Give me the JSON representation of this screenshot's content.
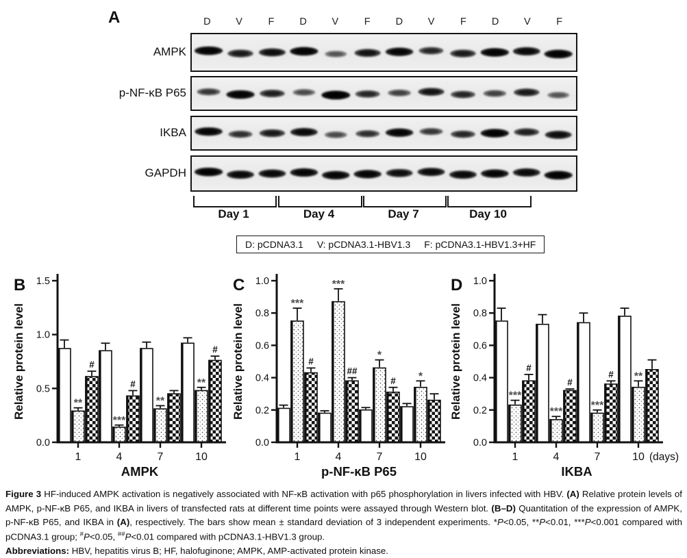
{
  "colors": {
    "ink": "#111111",
    "asterisk": "#4d4d4d",
    "blot_background": "#ededed"
  },
  "panel_a": {
    "label": "A",
    "lane_labels": [
      "D",
      "V",
      "F",
      "D",
      "V",
      "F",
      "D",
      "V",
      "F",
      "D",
      "V",
      "F"
    ],
    "blots": [
      {
        "name": "AMPK",
        "bands": [
          0.95,
          0.7,
          0.8,
          0.95,
          0.35,
          0.75,
          0.9,
          0.6,
          0.7,
          0.95,
          0.85,
          0.95
        ]
      },
      {
        "name": "p-NF-κB P65",
        "bands": [
          0.5,
          0.95,
          0.65,
          0.4,
          1.0,
          0.6,
          0.45,
          0.75,
          0.6,
          0.45,
          0.7,
          0.35
        ]
      },
      {
        "name": "IKBA",
        "bands": [
          0.9,
          0.55,
          0.7,
          0.85,
          0.4,
          0.55,
          0.9,
          0.5,
          0.6,
          0.95,
          0.65,
          0.8
        ]
      },
      {
        "name": "GAPDH",
        "bands": [
          0.95,
          0.85,
          0.85,
          0.9,
          0.9,
          0.9,
          0.8,
          0.85,
          0.85,
          0.9,
          0.85,
          0.95
        ]
      }
    ],
    "day_groups": [
      "Day 1",
      "Day 4",
      "Day 7",
      "Day 10"
    ],
    "legend_items": [
      "D: pCDNA3.1",
      "V: pCDNA3.1-HBV1.3",
      "F: pCDNA3.1-HBV1.3+HF"
    ]
  },
  "chart_data": [
    {
      "panel": "B",
      "type": "bar",
      "xlabel": "AMPK",
      "ylabel": "Relative protein level",
      "ylim": [
        0,
        1.5
      ],
      "yticks": [
        "0.0",
        "0.5",
        "1.0",
        "1.5"
      ],
      "categories": [
        "1",
        "4",
        "7",
        "10"
      ],
      "grid": false,
      "legend_position": "none",
      "series": [
        {
          "name": "pCDNA3.1",
          "pattern": "white",
          "values": [
            0.87,
            0.85,
            0.87,
            0.92
          ],
          "errors": [
            0.08,
            0.07,
            0.06,
            0.05
          ],
          "sig": [
            "",
            "",
            "",
            ""
          ]
        },
        {
          "name": "pCDNA3.1-HBV1.3",
          "pattern": "dots",
          "values": [
            0.29,
            0.14,
            0.31,
            0.48
          ],
          "errors": [
            0.03,
            0.02,
            0.03,
            0.03
          ],
          "sig": [
            "**",
            "***",
            "**",
            "**"
          ]
        },
        {
          "name": "pCDNA3.1-HBV1.3+HF",
          "pattern": "checker",
          "values": [
            0.61,
            0.43,
            0.45,
            0.76
          ],
          "errors": [
            0.05,
            0.05,
            0.03,
            0.04
          ],
          "sig": [
            "#",
            "#",
            "",
            "#"
          ]
        }
      ]
    },
    {
      "panel": "C",
      "type": "bar",
      "xlabel": "p-NF-κB P65",
      "ylabel": "Relative protein level",
      "ylim": [
        0,
        1.0
      ],
      "yticks": [
        "0.0",
        "0.2",
        "0.4",
        "0.6",
        "0.8",
        "1.0"
      ],
      "categories": [
        "1",
        "4",
        "7",
        "10"
      ],
      "grid": false,
      "legend_position": "none",
      "series": [
        {
          "name": "pCDNA3.1",
          "pattern": "white",
          "values": [
            0.21,
            0.18,
            0.2,
            0.22
          ],
          "errors": [
            0.02,
            0.015,
            0.015,
            0.02
          ],
          "sig": [
            "",
            "",
            "",
            ""
          ]
        },
        {
          "name": "pCDNA3.1-HBV1.3",
          "pattern": "dots",
          "values": [
            0.75,
            0.87,
            0.46,
            0.34
          ],
          "errors": [
            0.08,
            0.08,
            0.05,
            0.04
          ],
          "sig": [
            "***",
            "***",
            "*",
            "*"
          ]
        },
        {
          "name": "pCDNA3.1-HBV1.3+HF",
          "pattern": "checker",
          "values": [
            0.43,
            0.38,
            0.31,
            0.26
          ],
          "errors": [
            0.03,
            0.02,
            0.03,
            0.04
          ],
          "sig": [
            "#",
            "##",
            "#",
            ""
          ]
        }
      ]
    },
    {
      "panel": "D",
      "type": "bar",
      "xlabel": "IKBA",
      "ylabel": "Relative protein level",
      "x_suffix": "(days)",
      "ylim": [
        0,
        1.0
      ],
      "yticks": [
        "0.0",
        "0.2",
        "0.4",
        "0.6",
        "0.8",
        "1.0"
      ],
      "categories": [
        "1",
        "4",
        "7",
        "10"
      ],
      "grid": false,
      "legend_position": "none",
      "series": [
        {
          "name": "pCDNA3.1",
          "pattern": "white",
          "values": [
            0.75,
            0.73,
            0.74,
            0.78
          ],
          "errors": [
            0.08,
            0.06,
            0.06,
            0.05
          ],
          "sig": [
            "",
            "",
            "",
            ""
          ]
        },
        {
          "name": "pCDNA3.1-HBV1.3",
          "pattern": "dots",
          "values": [
            0.23,
            0.14,
            0.18,
            0.34
          ],
          "errors": [
            0.03,
            0.02,
            0.02,
            0.04
          ],
          "sig": [
            "***",
            "***",
            "***",
            "**"
          ]
        },
        {
          "name": "pCDNA3.1-HBV1.3+HF",
          "pattern": "checker",
          "values": [
            0.38,
            0.32,
            0.36,
            0.45
          ],
          "errors": [
            0.04,
            0.01,
            0.02,
            0.06
          ],
          "sig": [
            "#",
            "#",
            "#",
            ""
          ]
        }
      ]
    }
  ],
  "caption": {
    "main_segments": [
      {
        "t": "Figure 3",
        "b": true
      },
      {
        "t": " HF-induced AMPK activation is negatively associated with NF-κB activation with p65 phosphorylation in livers infected with HBV. "
      },
      {
        "t": "(A)",
        "b": true
      },
      {
        "t": " Relative protein levels of AMPK, p-NF-κB P65, and IKBA in livers of transfected rats at different time points were assayed through Western blot. "
      },
      {
        "t": "(B–D)",
        "b": true
      },
      {
        "t": " Quantitation of the expression of AMPK, p-NF-κB P65, and IKBA in "
      },
      {
        "t": "(A)",
        "b": true
      },
      {
        "t": ", respectively. The bars show mean ± standard deviation of 3 independent experiments. *"
      },
      {
        "t": "P",
        "i": true
      },
      {
        "t": "<0.05, **"
      },
      {
        "t": "P",
        "i": true
      },
      {
        "t": "<0.01, ***"
      },
      {
        "t": "P",
        "i": true
      },
      {
        "t": "<0.001 compared with pCDNA3.1 group; "
      },
      {
        "t": "#",
        "sup": true
      },
      {
        "t": "P",
        "i": true
      },
      {
        "t": "<0.05, "
      },
      {
        "t": "##",
        "sup": true
      },
      {
        "t": "P",
        "i": true
      },
      {
        "t": "<0.01 compared with pCDNA3.1-HBV1.3 group."
      }
    ],
    "abbrev_segments": [
      {
        "t": "Abbreviations:",
        "b": true
      },
      {
        "t": " HBV, hepatitis virus B; HF, halofuginone; AMPK, AMP-activated protein kinase."
      }
    ]
  }
}
